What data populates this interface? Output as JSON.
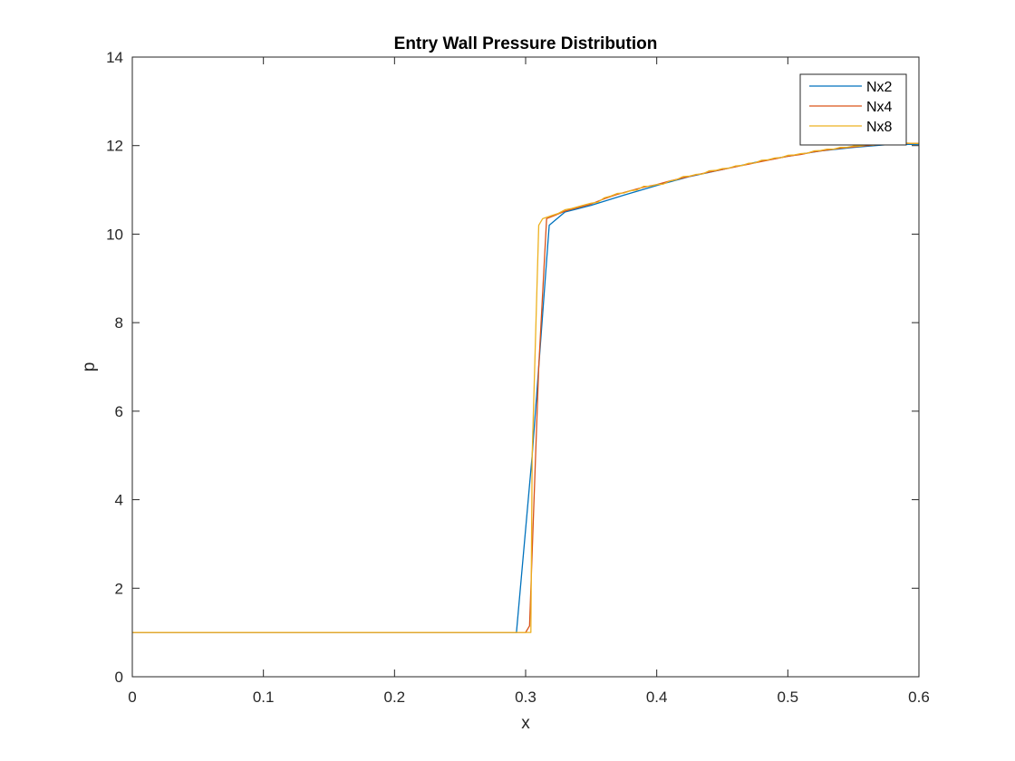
{
  "chart_data": {
    "type": "line",
    "title": "Entry Wall Pressure Distribution",
    "xlabel": "x",
    "ylabel": "p",
    "xlim": [
      0,
      0.6
    ],
    "ylim": [
      0,
      14
    ],
    "xticks": [
      0,
      0.1,
      0.2,
      0.3,
      0.4,
      0.5,
      0.6
    ],
    "xtick_labels": [
      "0",
      "0.1",
      "0.2",
      "0.3",
      "0.4",
      "0.5",
      "0.6"
    ],
    "yticks": [
      0,
      2,
      4,
      6,
      8,
      10,
      12,
      14
    ],
    "ytick_labels": [
      "0",
      "2",
      "4",
      "6",
      "8",
      "10",
      "12",
      "14"
    ],
    "grid": false,
    "box": true,
    "legend_position": "top-right",
    "series": [
      {
        "name": "Nx2",
        "color": "#0072BD",
        "x": [
          0,
          0.293,
          0.305,
          0.318,
          0.33,
          0.35,
          0.375,
          0.4,
          0.425,
          0.45,
          0.475,
          0.5,
          0.525,
          0.55,
          0.575,
          0.6
        ],
        "y": [
          1.0,
          1.0,
          5.0,
          10.2,
          10.5,
          10.65,
          10.88,
          11.1,
          11.3,
          11.46,
          11.62,
          11.76,
          11.88,
          11.96,
          12.02,
          12.03
        ]
      },
      {
        "name": "Nx4",
        "color": "#D95319",
        "x": [
          0,
          0.3,
          0.303,
          0.31,
          0.316,
          0.322,
          0.33,
          0.34,
          0.35,
          0.36,
          0.37,
          0.38,
          0.39,
          0.4,
          0.41,
          0.42,
          0.43,
          0.44,
          0.45,
          0.46,
          0.47,
          0.48,
          0.49,
          0.5,
          0.51,
          0.52,
          0.53,
          0.54,
          0.55,
          0.56,
          0.57,
          0.58,
          0.59,
          0.6
        ],
        "y": [
          1.0,
          1.0,
          1.15,
          7.0,
          10.35,
          10.42,
          10.52,
          10.6,
          10.68,
          10.8,
          10.9,
          10.98,
          11.06,
          11.12,
          11.2,
          11.27,
          11.34,
          11.4,
          11.46,
          11.52,
          11.58,
          11.64,
          11.7,
          11.76,
          11.8,
          11.86,
          11.9,
          11.94,
          11.97,
          12.0,
          12.02,
          12.04,
          12.05,
          12.05
        ]
      },
      {
        "name": "Nx8",
        "color": "#EDB120",
        "x": [
          0,
          0.304,
          0.305,
          0.31,
          0.313,
          0.316,
          0.32,
          0.325,
          0.33,
          0.335,
          0.34,
          0.345,
          0.35,
          0.355,
          0.36,
          0.365,
          0.37,
          0.375,
          0.38,
          0.385,
          0.39,
          0.395,
          0.4,
          0.405,
          0.41,
          0.415,
          0.42,
          0.425,
          0.43,
          0.435,
          0.44,
          0.445,
          0.45,
          0.455,
          0.46,
          0.465,
          0.47,
          0.475,
          0.48,
          0.485,
          0.49,
          0.495,
          0.5,
          0.505,
          0.51,
          0.515,
          0.52,
          0.525,
          0.53,
          0.535,
          0.54,
          0.545,
          0.55,
          0.555,
          0.56,
          0.565,
          0.57,
          0.575,
          0.58,
          0.585,
          0.59,
          0.595,
          0.6
        ],
        "y": [
          1.0,
          1.0,
          5.0,
          10.2,
          10.35,
          10.38,
          10.42,
          10.47,
          10.55,
          10.58,
          10.62,
          10.66,
          10.7,
          10.72,
          10.82,
          10.86,
          10.92,
          10.93,
          10.98,
          11.0,
          11.08,
          11.08,
          11.12,
          11.13,
          11.2,
          11.23,
          11.3,
          11.31,
          11.35,
          11.36,
          11.43,
          11.44,
          11.48,
          11.49,
          11.54,
          11.55,
          11.6,
          11.61,
          11.67,
          11.68,
          11.72,
          11.73,
          11.78,
          11.79,
          11.82,
          11.83,
          11.88,
          11.89,
          11.92,
          11.92,
          11.96,
          11.96,
          11.99,
          11.99,
          12.02,
          12.01,
          12.04,
          12.03,
          12.05,
          12.04,
          12.06,
          12.05,
          12.05
        ]
      }
    ]
  }
}
